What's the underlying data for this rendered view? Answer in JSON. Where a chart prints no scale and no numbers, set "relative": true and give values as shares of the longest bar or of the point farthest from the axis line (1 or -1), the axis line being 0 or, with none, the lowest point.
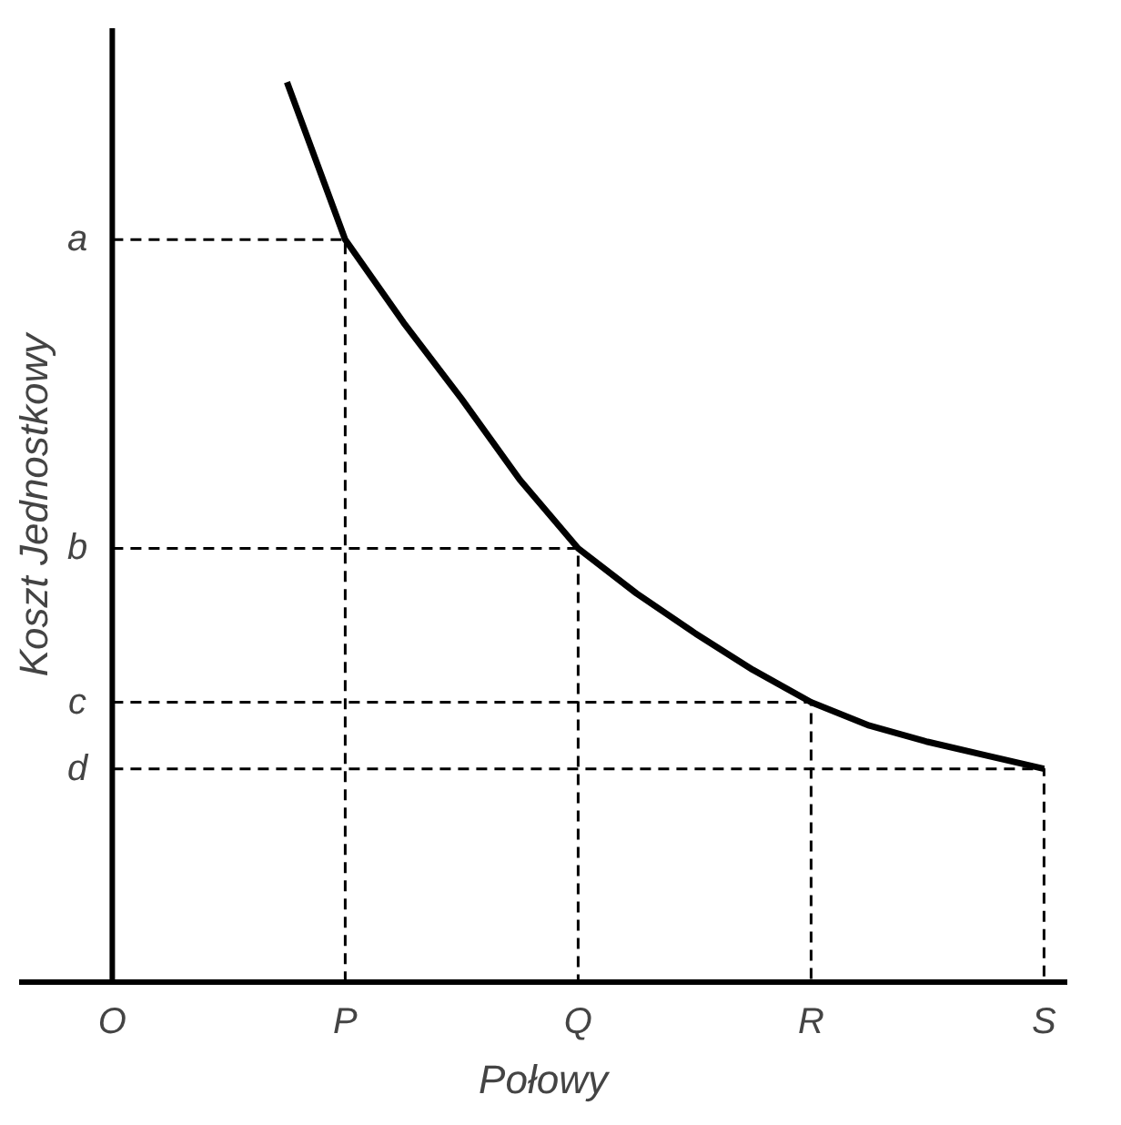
{
  "chart_data": {
    "type": "line",
    "xlabel": "Połowy",
    "ylabel": "Koszt Jednostkowy",
    "relative": true,
    "categories": [
      "O",
      null,
      null,
      null,
      "P",
      null,
      null,
      null,
      "Q",
      null,
      null,
      null,
      "R",
      null,
      null,
      null,
      "S"
    ],
    "series": [
      {
        "color": "#000000",
        "values": [
          null,
          null,
          null,
          1,
          0.825,
          0.733,
          0.648,
          0.558,
          0.482,
          0.432,
          0.388,
          0.347,
          0.311,
          0.285,
          0.267,
          0.252,
          0.237
        ]
      }
    ],
    "ref_lines": [
      {
        "axis": "y",
        "value": 0.825,
        "label": "a",
        "line_style": "dashed"
      },
      {
        "axis": "y",
        "value": 0.482,
        "label": "b",
        "line_style": "dashed"
      },
      {
        "axis": "y",
        "value": 0.311,
        "label": "c",
        "line_style": "dashed"
      },
      {
        "axis": "y",
        "value": 0.237,
        "label": "d",
        "line_style": "dashed"
      }
    ],
    "grid": false,
    "marker": "none",
    "line_style": "solid"
  }
}
